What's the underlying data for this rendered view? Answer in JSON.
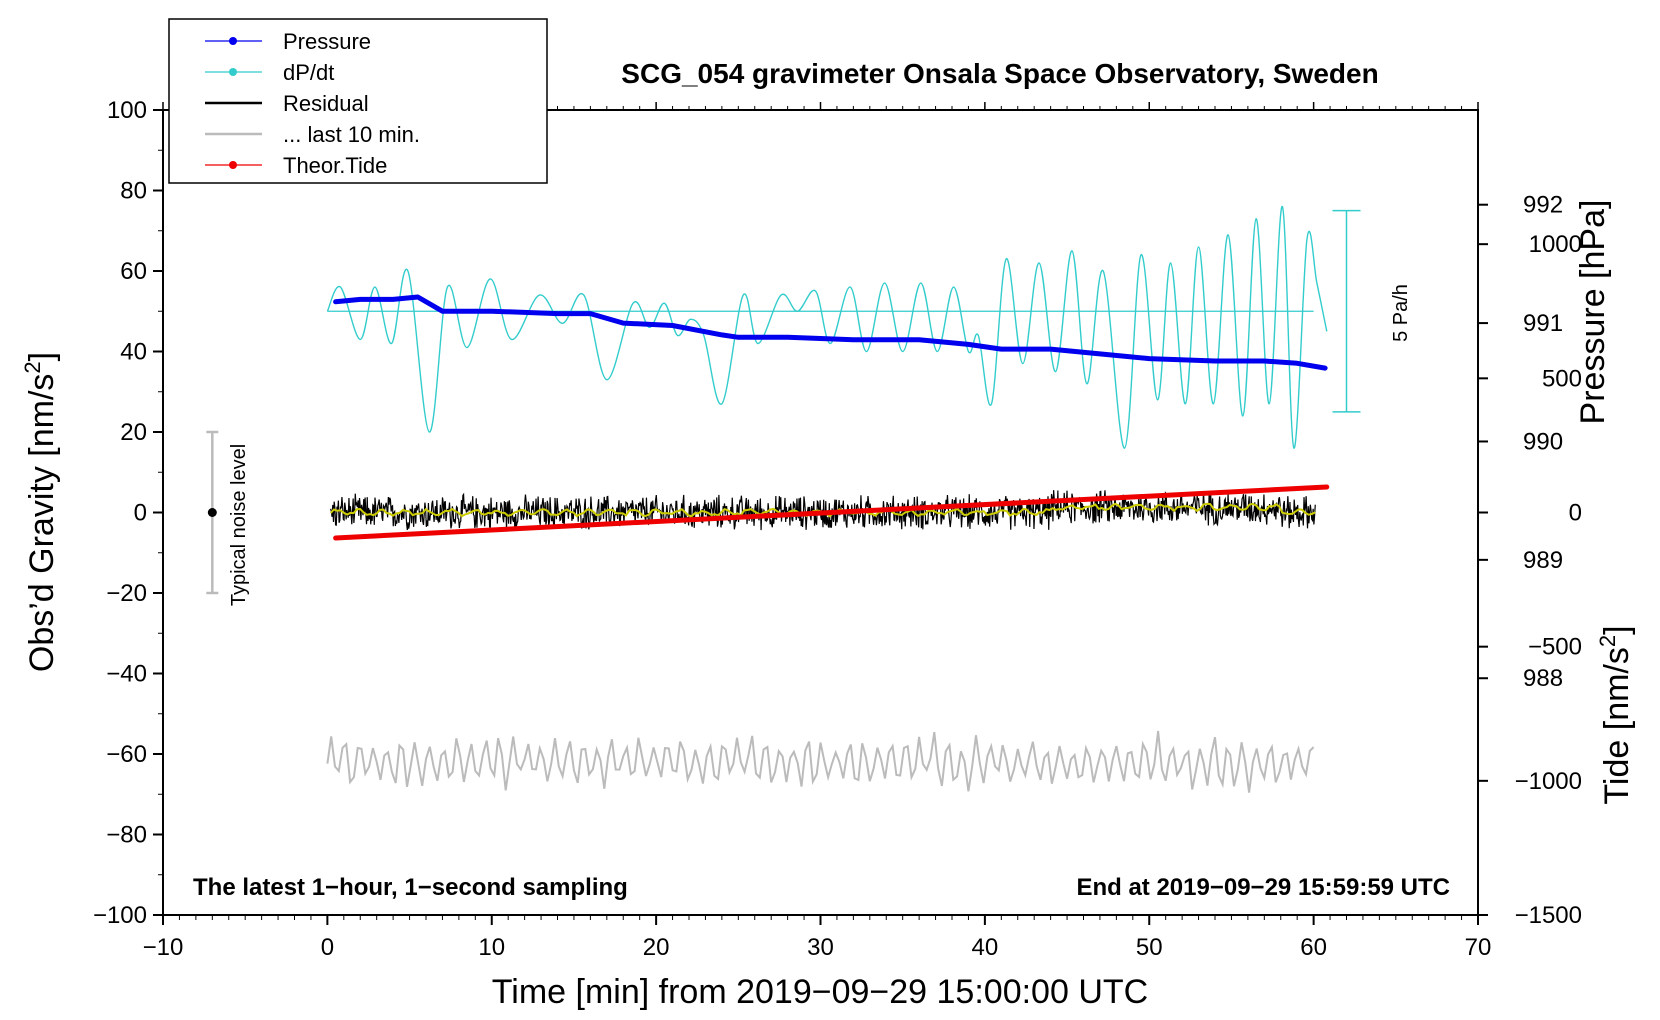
{
  "chart_data": {
    "type": "line",
    "title": "SCG_054 gravimeter Onsala Space Observatory, Sweden",
    "xlabel": "Time [min] from 2019−09−29 15:00:00 UTC",
    "ylabel_left_main": "Obs’d Gravity [nm/s",
    "ylabel_left_sup": "2",
    "ylabel_left_end": "]",
    "ylabel_right_pressure": "Pressure [hPa]",
    "ylabel_right_tide_main": "Tide [nm/s",
    "ylabel_right_tide_sup": "2",
    "ylabel_right_tide_end": "]",
    "xlim": [
      -10,
      70
    ],
    "ylim": [
      -100,
      100
    ],
    "pressure_lim": [
      986,
      992.8
    ],
    "tide_lim": [
      -1500,
      1500
    ],
    "x_ticks": [
      "−10",
      "0",
      "10",
      "20",
      "30",
      "40",
      "50",
      "60",
      "70"
    ],
    "y_ticks": [
      "100",
      "80",
      "60",
      "40",
      "20",
      "0",
      "−20",
      "−40",
      "−60",
      "−80",
      "−100"
    ],
    "pressure_ticks": [
      "992",
      "991",
      "990",
      "989",
      "988"
    ],
    "tide_ticks": [
      "1000",
      "500",
      "0",
      "−500",
      "−1000",
      "−1500"
    ],
    "note_left": "The latest 1−hour, 1−second sampling",
    "note_right": "End at 2019−09−29 15:59:59 UTC",
    "noise_label": "Typical noise level",
    "noise_range": [
      -20,
      20
    ],
    "noise_x": -7,
    "scale_bar_label": "5 Pa/h",
    "scale_bar_range": [
      25,
      75
    ],
    "scale_bar_x": 62,
    "legend": [
      {
        "label": "Pressure",
        "color": "#0000ee",
        "marker": true
      },
      {
        "label": "dP/dt",
        "color": "#33cccc",
        "marker": true
      },
      {
        "label": "Residual",
        "color": "#000000",
        "marker": false
      },
      {
        "label": "... last 10 min.",
        "color": "#bbbbbb",
        "marker": false
      },
      {
        "label": "Theor.Tide",
        "color": "#ee0000",
        "marker": true
      }
    ],
    "series": [
      {
        "name": "Pressure",
        "color": "#0000ee",
        "axis": "pressure",
        "x": [
          0.5,
          2,
          4,
          5.5,
          7,
          10,
          14,
          16,
          18,
          21,
          24,
          25,
          28,
          32,
          36,
          39,
          41,
          44,
          47,
          50,
          54,
          57,
          59,
          60.7
        ],
        "y": [
          991.18,
          991.2,
          991.2,
          991.22,
          991.1,
          991.1,
          991.08,
          991.08,
          991.0,
          990.98,
          990.9,
          990.88,
          990.88,
          990.86,
          990.86,
          990.82,
          990.78,
          990.78,
          990.74,
          990.7,
          990.68,
          990.68,
          990.66,
          990.62
        ]
      },
      {
        "name": "dP/dt",
        "color": "#33cccc",
        "axis": "left",
        "baseline": 50,
        "x": [
          0,
          0.8,
          2,
          2.9,
          3.9,
          4.9,
          6.2,
          7.3,
          8.5,
          9.9,
          11.2,
          12.9,
          14.3,
          15.6,
          17,
          18.6,
          19.6,
          20.5,
          21.3,
          22.1,
          22.9,
          24,
          25.3,
          26.2,
          27.6,
          28.6,
          29.7,
          30.6,
          31.8,
          32.8,
          33.9,
          35,
          36.1,
          37.1,
          38.1,
          39,
          39.6,
          40.4,
          41.3,
          42.3,
          43.3,
          44.3,
          45.3,
          46.2,
          47.2,
          48.5,
          49.5,
          50.5,
          51.3,
          52.2,
          53,
          53.9,
          54.8,
          55.7,
          56.5,
          57.3,
          58.1,
          58.8,
          59.6,
          60.2,
          60.8
        ],
        "y": [
          50,
          56,
          43,
          56,
          42,
          60,
          20,
          56,
          41,
          58,
          43,
          54,
          47,
          54,
          33,
          52,
          46,
          52,
          44,
          48,
          44,
          27,
          54,
          42,
          54,
          50,
          55,
          42,
          56,
          40,
          57,
          40,
          57,
          40,
          56,
          40,
          44,
          27,
          63,
          37,
          62,
          35,
          65,
          32,
          60,
          16,
          64,
          28,
          62,
          27,
          66,
          27,
          69,
          24,
          73,
          27,
          76,
          16,
          68,
          57,
          45
        ]
      },
      {
        "name": "Residual",
        "color": "#000000",
        "axis": "left",
        "x": [
          0.2,
          60.1
        ],
        "amplitude": 3.5
      },
      {
        "name": "Residual smoothed",
        "color": "#cccc00",
        "axis": "left",
        "x": [
          0.2,
          60.1
        ],
        "center": 0
      },
      {
        "name": "... last 10 min.",
        "color": "#bbbbbb",
        "axis": "left",
        "x": [
          0,
          60
        ],
        "center": -62,
        "amplitude": 6
      },
      {
        "name": "Theor.Tide",
        "color": "#ee0000",
        "axis": "tide",
        "x": [
          0.5,
          60.8
        ],
        "y": [
          -95,
          95
        ]
      }
    ]
  }
}
